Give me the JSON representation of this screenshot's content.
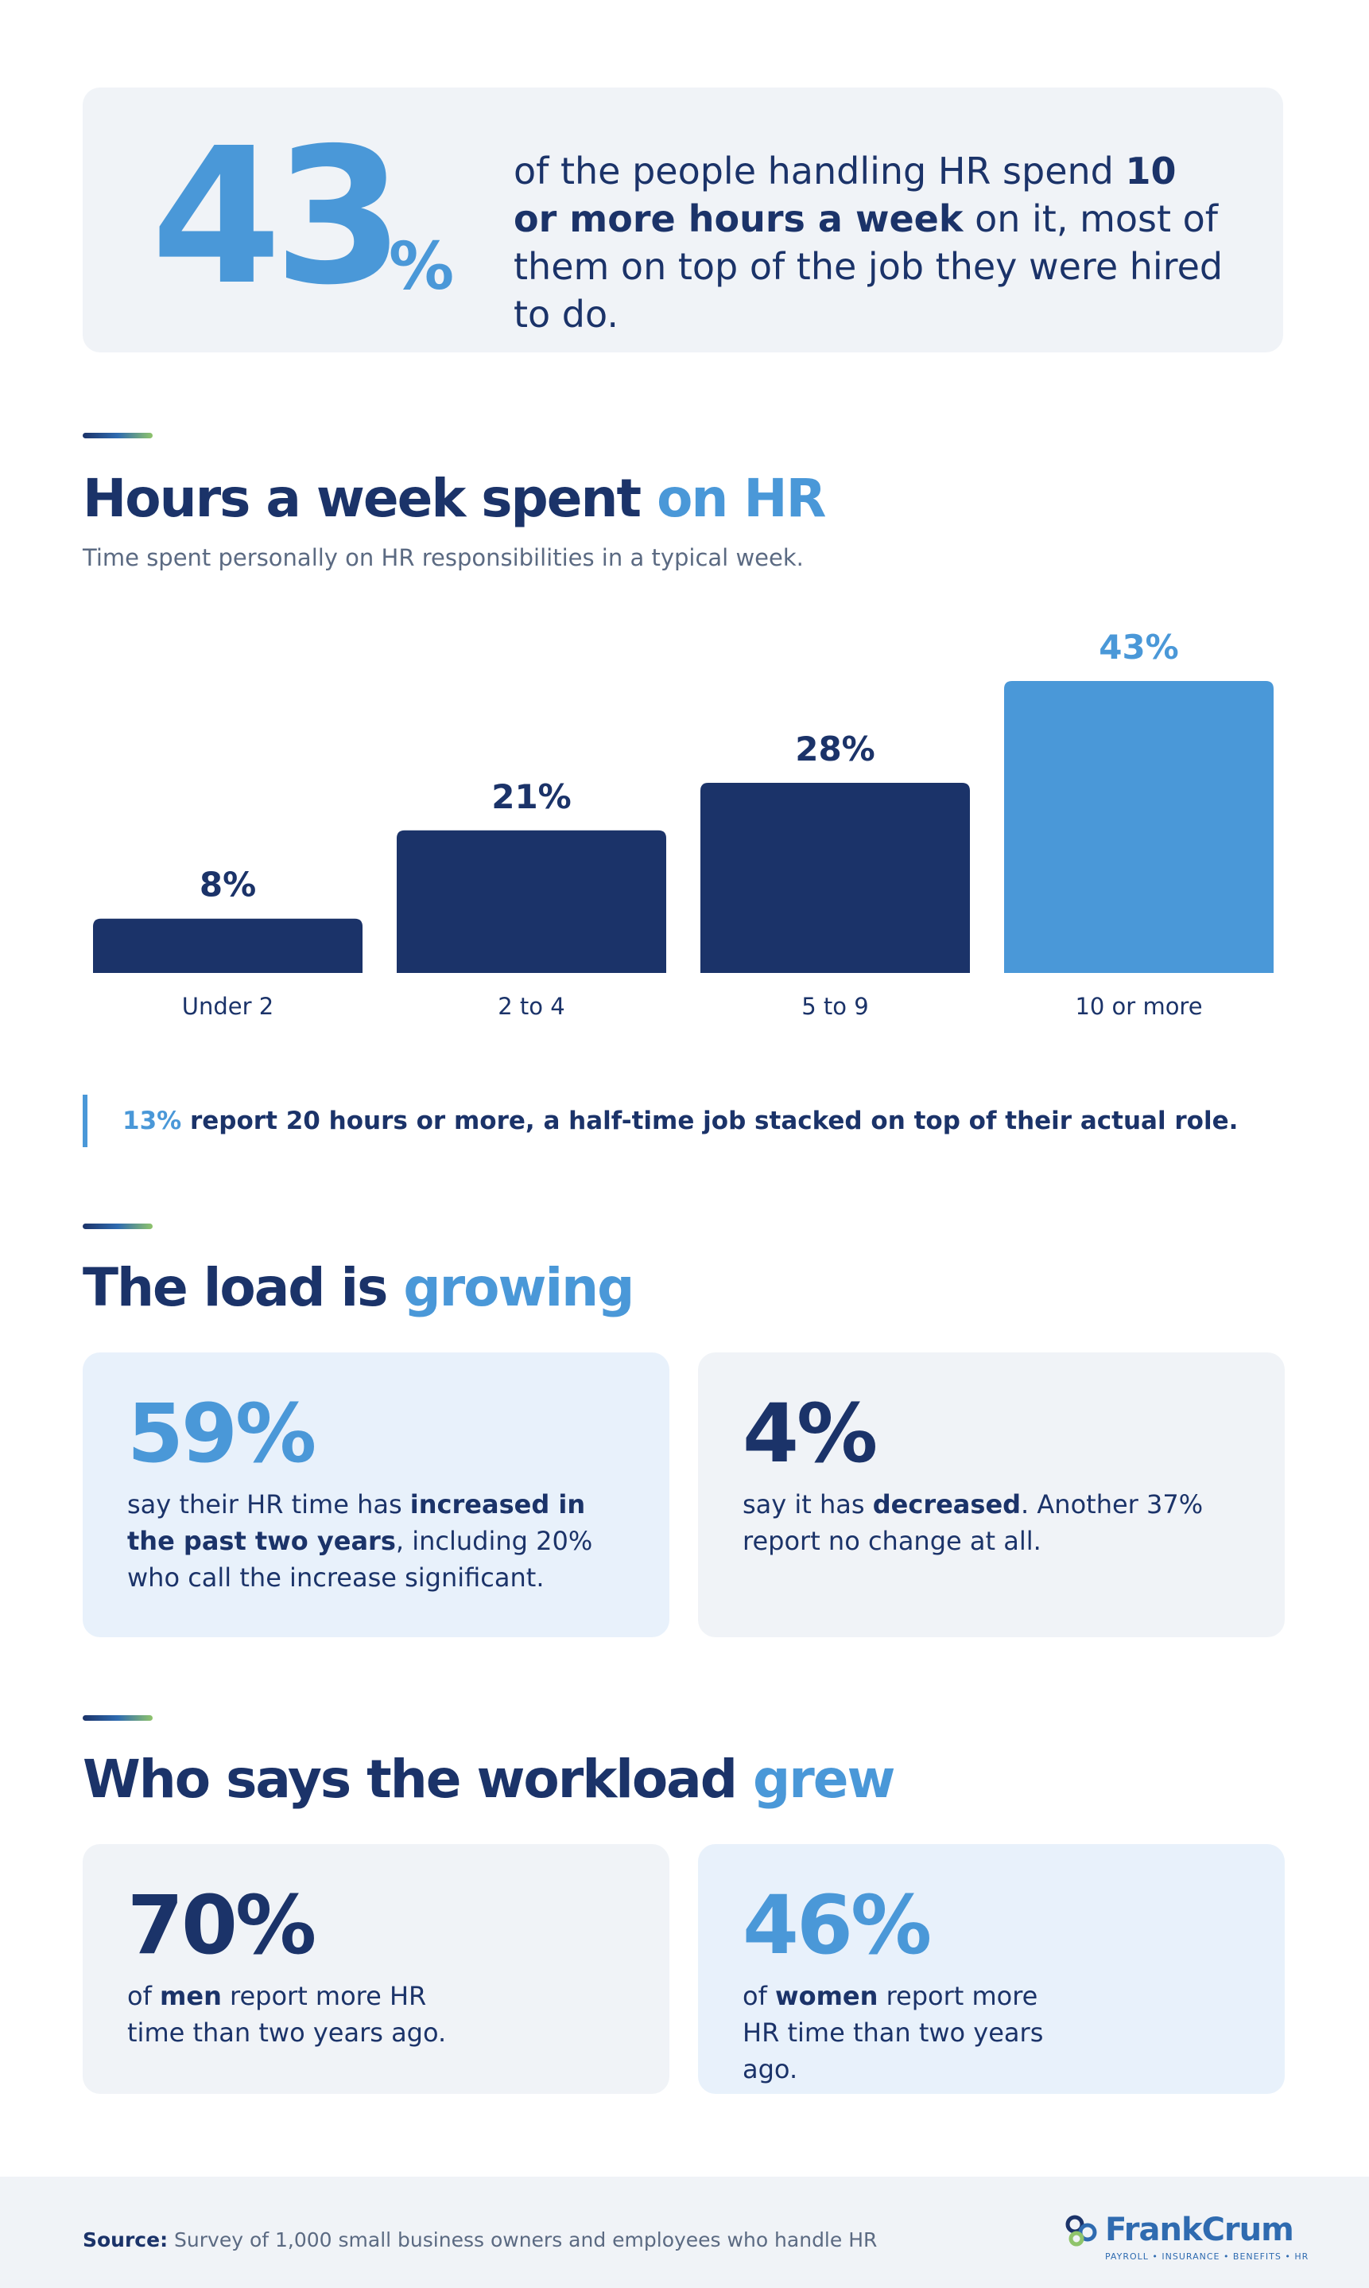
{
  "hero": {
    "number": "43",
    "percent_sign": "%",
    "text_1": "of the people handling HR spend ",
    "text_bold": "10 or more hours a week",
    "text_2": " on it, most of them on top of the job they were hired to do."
  },
  "section1": {
    "heading_main": "Hours a week spent ",
    "heading_highlight": "on HR",
    "subtitle": "Time spent personally on HR responsibilities in a typical week."
  },
  "chart_data": {
    "type": "bar",
    "categories": [
      "Under 2",
      "2 to 4",
      "5 to 9",
      "10 or more"
    ],
    "values": [
      8,
      21,
      28,
      43
    ],
    "value_labels": [
      "8%",
      "21%",
      "28%",
      "43%"
    ],
    "unit": "%",
    "ylim": [
      0,
      43
    ],
    "grid": false,
    "highlight_index": 3,
    "colors": {
      "default": "#1b3369",
      "highlight": "#4a98d8"
    }
  },
  "note": {
    "highlight": "13%",
    "text": " report 20 hours or more, a half-time job stacked on top of their actual role."
  },
  "section2": {
    "heading_main": "The load is ",
    "heading_highlight": "growing",
    "cards": [
      {
        "number": "59%",
        "text_1": "say their HR time has ",
        "text_bold": "increased in the past two years",
        "text_2": ", including 20% who call the increase significant."
      },
      {
        "number": "4%",
        "text_1": "say it has ",
        "text_bold": "decreased",
        "text_2": ". Another 37% report no change at all."
      }
    ]
  },
  "section3": {
    "heading_main": "Who says the workload ",
    "heading_highlight": "grew",
    "cards": [
      {
        "number": "70%",
        "text_1": "of ",
        "text_bold": "men",
        "text_2": " report more HR time than two years ago."
      },
      {
        "number": "46%",
        "text_1": "of ",
        "text_bold": "women",
        "text_2": " report more HR time than two years ago."
      }
    ]
  },
  "footer": {
    "source_label": "Source:",
    "source_text": " Survey of 1,000 small business owners and employees who handle HR",
    "logo_name": "FrankCrum",
    "logo_tagline": "PAYROLL • INSURANCE • BENEFITS • HR"
  },
  "colors": {
    "navy": "#1b3369",
    "accent_blue": "#4a98d8",
    "card_gray": "#f0f3f7",
    "card_blue": "#e8f1fb"
  }
}
